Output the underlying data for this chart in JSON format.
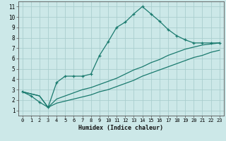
{
  "xlabel": "Humidex (Indice chaleur)",
  "ylabel": "",
  "xlim": [
    -0.5,
    23.5
  ],
  "ylim": [
    0.5,
    11.5
  ],
  "xticks": [
    0,
    1,
    2,
    3,
    4,
    5,
    6,
    7,
    8,
    9,
    10,
    11,
    12,
    13,
    14,
    15,
    16,
    17,
    18,
    19,
    20,
    21,
    22,
    23
  ],
  "yticks": [
    1,
    2,
    3,
    4,
    5,
    6,
    7,
    8,
    9,
    10,
    11
  ],
  "color": "#1a7a6e",
  "background_color": "#cce8e8",
  "grid_color": "#aacece",
  "line1_x": [
    0,
    1,
    2,
    3,
    4,
    5,
    6,
    7,
    8,
    9,
    10,
    11,
    12,
    13,
    14,
    15,
    16,
    17,
    18,
    19,
    20,
    21,
    22,
    23
  ],
  "line1_y": [
    2.8,
    2.4,
    1.8,
    1.3,
    3.7,
    4.3,
    4.3,
    4.3,
    4.5,
    6.3,
    7.6,
    9.0,
    9.5,
    10.3,
    11.0,
    10.3,
    9.6,
    8.8,
    8.2,
    7.8,
    7.5,
    7.5,
    7.5,
    7.5
  ],
  "line2_x": [
    0,
    2,
    3,
    4,
    5,
    6,
    7,
    8,
    9,
    10,
    11,
    12,
    13,
    14,
    15,
    16,
    17,
    18,
    19,
    20,
    21,
    22,
    23
  ],
  "line2_y": [
    2.8,
    2.4,
    1.3,
    2.1,
    2.4,
    2.7,
    3.0,
    3.2,
    3.5,
    3.8,
    4.1,
    4.5,
    4.9,
    5.2,
    5.6,
    5.9,
    6.3,
    6.6,
    6.9,
    7.1,
    7.3,
    7.4,
    7.5
  ],
  "line3_x": [
    0,
    2,
    3,
    4,
    5,
    6,
    7,
    8,
    9,
    10,
    11,
    12,
    13,
    14,
    15,
    16,
    17,
    18,
    19,
    20,
    21,
    22,
    23
  ],
  "line3_y": [
    2.8,
    2.4,
    1.3,
    1.7,
    1.9,
    2.1,
    2.3,
    2.5,
    2.8,
    3.0,
    3.3,
    3.6,
    3.9,
    4.3,
    4.6,
    4.9,
    5.2,
    5.5,
    5.8,
    6.1,
    6.3,
    6.6,
    6.8
  ]
}
